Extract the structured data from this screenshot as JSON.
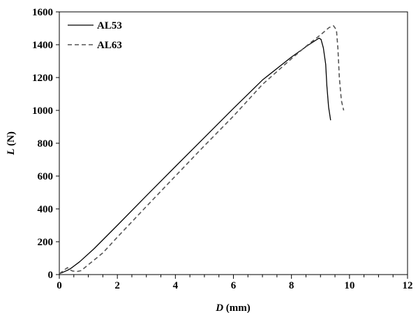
{
  "chart_data": {
    "type": "line",
    "xlabel": {
      "var": "D",
      "unit": " (mm)"
    },
    "ylabel": {
      "var": "L",
      "unit": " (N)"
    },
    "xlim": [
      0,
      12
    ],
    "ylim": [
      0,
      1600
    ],
    "x_major": 2,
    "x_minor": 0.5,
    "y_major": 200,
    "grid": false,
    "legend_position": "top-left",
    "series": [
      {
        "name": "AL53",
        "style": "solid",
        "color": "#000000",
        "points": [
          [
            0,
            5
          ],
          [
            0.1,
            12
          ],
          [
            0.2,
            20
          ],
          [
            0.28,
            26
          ],
          [
            0.4,
            38
          ],
          [
            0.7,
            78
          ],
          [
            1.2,
            158
          ],
          [
            2.0,
            300
          ],
          [
            3.0,
            480
          ],
          [
            4.0,
            658
          ],
          [
            5.0,
            835
          ],
          [
            6.0,
            1012
          ],
          [
            7.0,
            1185
          ],
          [
            8.0,
            1325
          ],
          [
            8.6,
            1400
          ],
          [
            8.95,
            1440
          ],
          [
            9.02,
            1432
          ],
          [
            9.1,
            1380
          ],
          [
            9.18,
            1280
          ],
          [
            9.22,
            1150
          ],
          [
            9.28,
            1020
          ],
          [
            9.35,
            940
          ]
        ]
      },
      {
        "name": "AL63",
        "style": "dashed",
        "color": "#555555",
        "points": [
          [
            0,
            5
          ],
          [
            0.1,
            18
          ],
          [
            0.2,
            32
          ],
          [
            0.28,
            42
          ],
          [
            0.35,
            30
          ],
          [
            0.45,
            22
          ],
          [
            0.6,
            18
          ],
          [
            0.75,
            24
          ],
          [
            1.0,
            60
          ],
          [
            1.5,
            132
          ],
          [
            2.0,
            228
          ],
          [
            3.0,
            415
          ],
          [
            4.0,
            600
          ],
          [
            5.0,
            785
          ],
          [
            6.0,
            965
          ],
          [
            7.0,
            1158
          ],
          [
            8.0,
            1315
          ],
          [
            8.5,
            1390
          ],
          [
            9.0,
            1460
          ],
          [
            9.3,
            1505
          ],
          [
            9.45,
            1515
          ],
          [
            9.55,
            1490
          ],
          [
            9.6,
            1380
          ],
          [
            9.65,
            1200
          ],
          [
            9.72,
            1060
          ],
          [
            9.8,
            1000
          ]
        ]
      }
    ]
  }
}
